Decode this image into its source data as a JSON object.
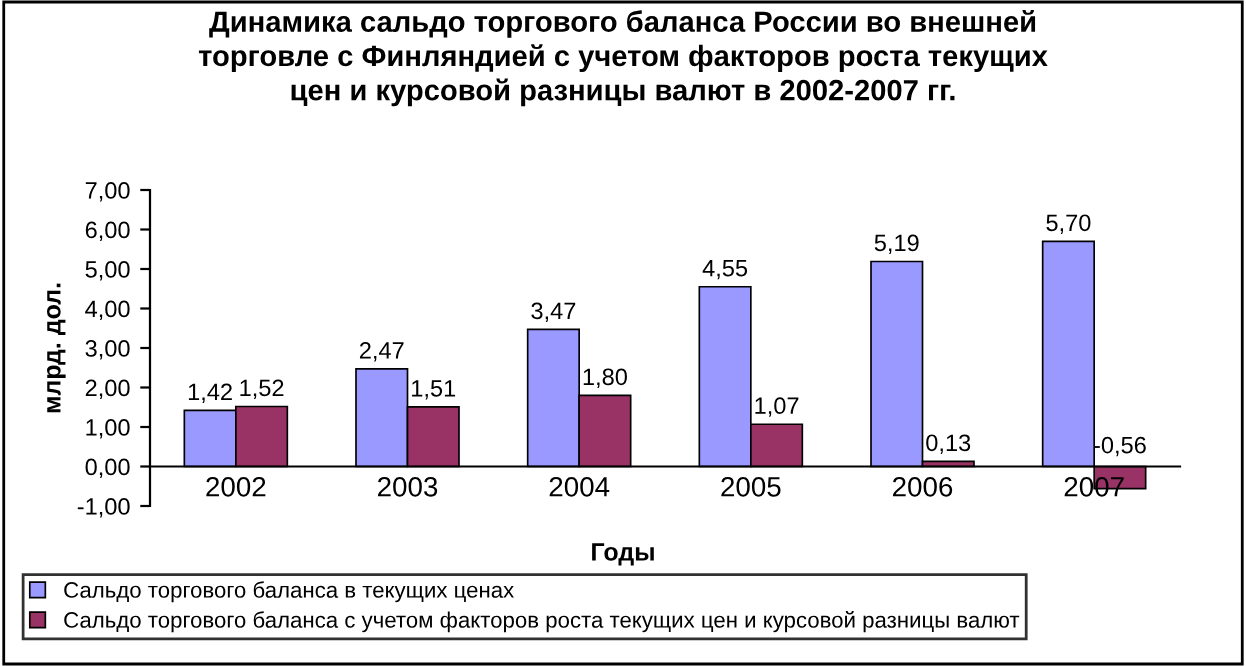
{
  "chart_data": {
    "type": "bar",
    "title": "Динамика сальдо торгового баланса России во внешней\nторговле с Финляндией с учетом факторов роста текущих\nцен и курсовой разницы валют в 2002-2007 гг.",
    "xlabel": "Годы",
    "ylabel": "млрд. дол.",
    "categories": [
      "2002",
      "2003",
      "2004",
      "2005",
      "2006",
      "2007"
    ],
    "series": [
      {
        "name": "Сальдо торгового баланса в текущих ценах",
        "color": "#9999ff",
        "values": [
          1.42,
          2.47,
          3.47,
          4.55,
          5.19,
          5.7
        ],
        "value_labels": [
          "1,42",
          "2,47",
          "3,47",
          "4,55",
          "5,19",
          "5,70"
        ]
      },
      {
        "name": "Сальдо торгового баланса с учетом факторов роста текущих цен и курсовой разницы валют",
        "color": "#993366",
        "values": [
          1.52,
          1.51,
          1.8,
          1.07,
          0.13,
          -0.56
        ],
        "value_labels": [
          "1,52",
          "1,51",
          "1,80",
          "1,07",
          "0,13",
          "-0,56"
        ]
      }
    ],
    "ylim": [
      -1,
      7
    ],
    "yticks": [
      {
        "value": -1,
        "label": "-1,00"
      },
      {
        "value": 0,
        "label": "0,00"
      },
      {
        "value": 1,
        "label": "1,00"
      },
      {
        "value": 2,
        "label": "2,00"
      },
      {
        "value": 3,
        "label": "3,00"
      },
      {
        "value": 4,
        "label": "4,00"
      },
      {
        "value": 5,
        "label": "5,00"
      },
      {
        "value": 6,
        "label": "6,00"
      },
      {
        "value": 7,
        "label": "7,00"
      }
    ],
    "grid": false,
    "legend": "bottom"
  }
}
